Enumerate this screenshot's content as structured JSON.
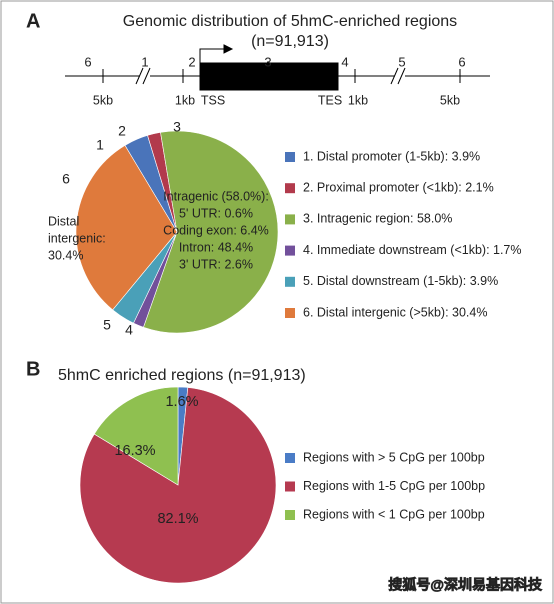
{
  "panels": [
    "A",
    "B"
  ],
  "diagram": {
    "region_numbers": [
      "6",
      "1",
      "2",
      "3",
      "4",
      "5",
      "6"
    ],
    "positions": [
      "5kb",
      "1kb",
      "TSS",
      "TES",
      "1kb",
      "5kb"
    ]
  },
  "chart_data": [
    {
      "type": "pie",
      "title": "Genomic distribution of 5hmC-enriched regions",
      "subtitle": "(n=91,913)",
      "categories": [
        "1. Distal promoter (1-5kb): 3.9%",
        "2. Proximal promoter (<1kb): 2.1%",
        "3. Intragenic region:   58.0%",
        "4. Immediate downstream (<1kb): 1.7%",
        "5. Distal downstream (1-5kb): 3.9%",
        "6. Distal intergenic (>5kb): 30.4%"
      ],
      "values": [
        3.9,
        2.1,
        58.0,
        1.7,
        3.9,
        30.4
      ],
      "slice_labels": [
        "1",
        "2",
        "3",
        "4",
        "5",
        "6"
      ],
      "colors": [
        "#4a74ba",
        "#b23a4c",
        "#8ab04a",
        "#72509b",
        "#4aa0b8",
        "#df7a3c"
      ],
      "annotations": [
        [
          "Intragenic (58.0%):",
          "5' UTR: 0.6%",
          "Coding exon: 6.4%",
          "Intron: 48.4%",
          "3' UTR: 2.6%"
        ],
        [
          "Distal",
          "intergenic:",
          "30.4%"
        ]
      ]
    },
    {
      "type": "pie",
      "title": "5hmC enriched regions (n=91,913)",
      "categories": [
        "Regions with > 5 CpG per 100bp",
        "Regions with 1-5 CpG per 100bp",
        "Regions with < 1 CpG per 100bp"
      ],
      "values": [
        1.6,
        82.1,
        16.3
      ],
      "value_labels": [
        "1.6%",
        "82.1%",
        "16.3%"
      ],
      "colors": [
        "#4a7cc6",
        "#b63a50",
        "#8fc050"
      ]
    }
  ],
  "watermark": "搜狐号@深圳易基因科技"
}
